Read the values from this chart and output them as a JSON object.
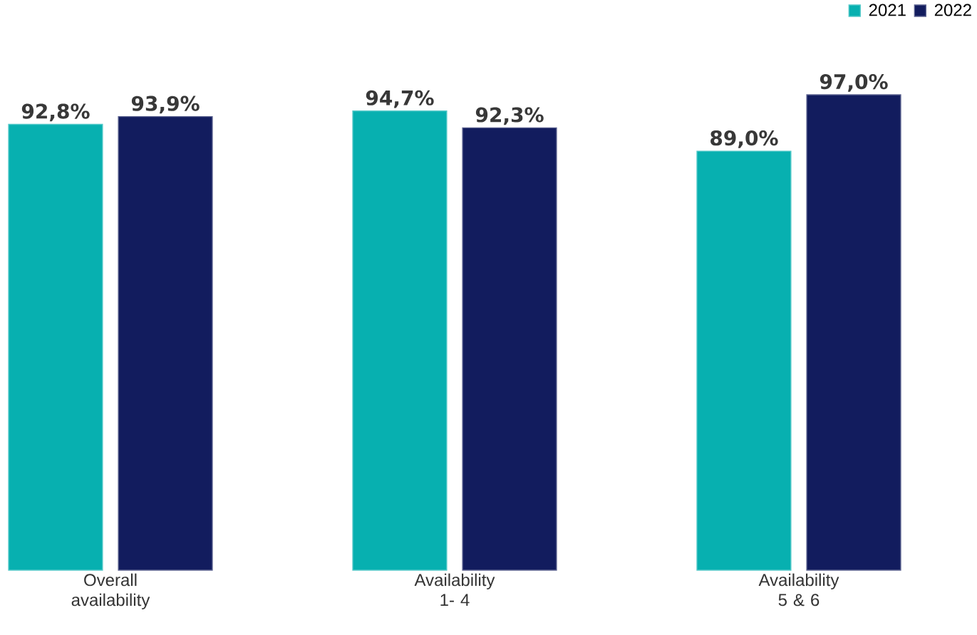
{
  "chart_data": {
    "type": "bar",
    "categories": [
      "Overall availability",
      "Availability 1- 4",
      "Availability 5 & 6"
    ],
    "series": [
      {
        "name": "2021",
        "color": "#07b0b0",
        "values": [
          92.8,
          94.7,
          89.0
        ],
        "value_labels": [
          "92,8%",
          "94,7%",
          "89,0%"
        ]
      },
      {
        "name": "2022",
        "color": "#121c5e",
        "values": [
          93.9,
          92.3,
          97.0
        ],
        "value_labels": [
          "93,9%",
          "92,3%",
          "97,0%"
        ]
      }
    ],
    "ylim": [
      29.5,
      97.0
    ],
    "legend": "top right"
  }
}
